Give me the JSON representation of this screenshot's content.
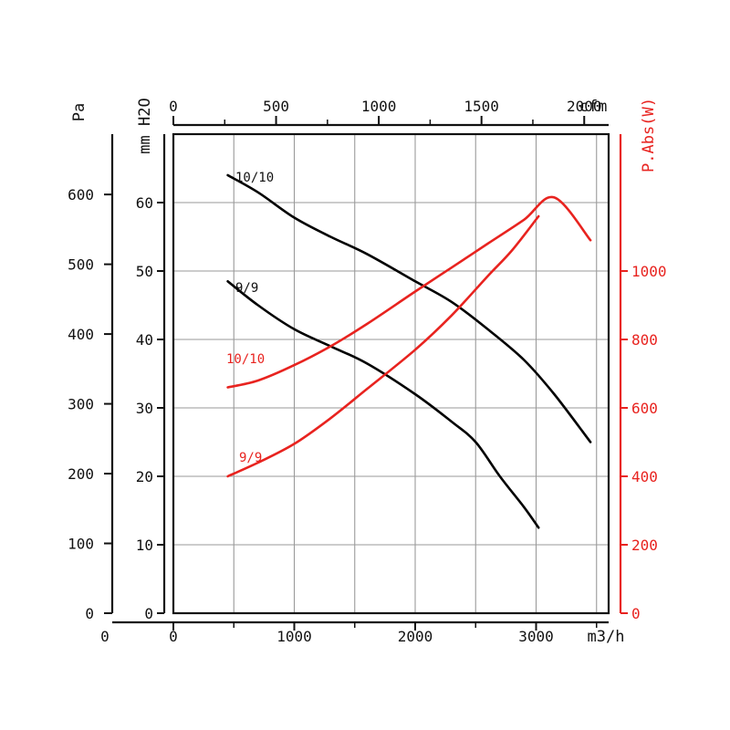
{
  "chart_data": {
    "type": "line",
    "x_axis": {
      "label": "m3/h",
      "range": [
        0,
        3600
      ],
      "ticks": [
        "0",
        "1000",
        "2000",
        "3000"
      ],
      "minor_grid_step": 500
    },
    "x2_axis": {
      "label": "cfm",
      "ticks": [
        "0",
        "500",
        "1000",
        "1500",
        "2000"
      ]
    },
    "y_axis_pa": {
      "label": "Pa",
      "ticks": [
        "0",
        "100",
        "200",
        "300",
        "400",
        "500",
        "600"
      ]
    },
    "y_axis_mmh2o": {
      "label": "mm H2O",
      "range": [
        0,
        70
      ],
      "ticks": [
        "0",
        "10",
        "20",
        "30",
        "40",
        "50",
        "60"
      ]
    },
    "y_axis_power": {
      "label": "P.Abs(W)",
      "range": [
        0,
        1400
      ],
      "ticks": [
        "0",
        "200",
        "400",
        "600",
        "800",
        "1000"
      ],
      "color": "#e8231f"
    },
    "grid": true,
    "series": [
      {
        "name": "10/10",
        "axis": "pressure",
        "color": "#000000",
        "points": [
          [
            450,
            64
          ],
          [
            700,
            61.5
          ],
          [
            1000,
            57.8
          ],
          [
            1300,
            55
          ],
          [
            1600,
            52.5
          ],
          [
            2000,
            48.5
          ],
          [
            2300,
            45.5
          ],
          [
            2600,
            41.5
          ],
          [
            2900,
            37
          ],
          [
            3150,
            32
          ],
          [
            3450,
            25
          ]
        ]
      },
      {
        "name": "9/9",
        "axis": "pressure",
        "color": "#000000",
        "points": [
          [
            450,
            48.5
          ],
          [
            700,
            45
          ],
          [
            1000,
            41.5
          ],
          [
            1300,
            39
          ],
          [
            1600,
            36.5
          ],
          [
            2000,
            32
          ],
          [
            2300,
            28
          ],
          [
            2500,
            25
          ],
          [
            2700,
            20
          ],
          [
            2900,
            15.5
          ],
          [
            3020,
            12.5
          ]
        ]
      },
      {
        "name": "10/10",
        "axis": "power",
        "color": "#e8231f",
        "points": [
          [
            450,
            660
          ],
          [
            700,
            680
          ],
          [
            1000,
            725
          ],
          [
            1300,
            780
          ],
          [
            1600,
            845
          ],
          [
            2000,
            940
          ],
          [
            2300,
            1010
          ],
          [
            2600,
            1080
          ],
          [
            2900,
            1150
          ],
          [
            3150,
            1215
          ],
          [
            3450,
            1090
          ]
        ]
      },
      {
        "name": "9/9",
        "axis": "power",
        "color": "#e8231f",
        "points": [
          [
            450,
            400
          ],
          [
            700,
            440
          ],
          [
            1000,
            495
          ],
          [
            1300,
            570
          ],
          [
            1600,
            655
          ],
          [
            2000,
            770
          ],
          [
            2300,
            870
          ],
          [
            2600,
            985
          ],
          [
            2800,
            1060
          ],
          [
            3020,
            1160
          ]
        ]
      }
    ]
  }
}
